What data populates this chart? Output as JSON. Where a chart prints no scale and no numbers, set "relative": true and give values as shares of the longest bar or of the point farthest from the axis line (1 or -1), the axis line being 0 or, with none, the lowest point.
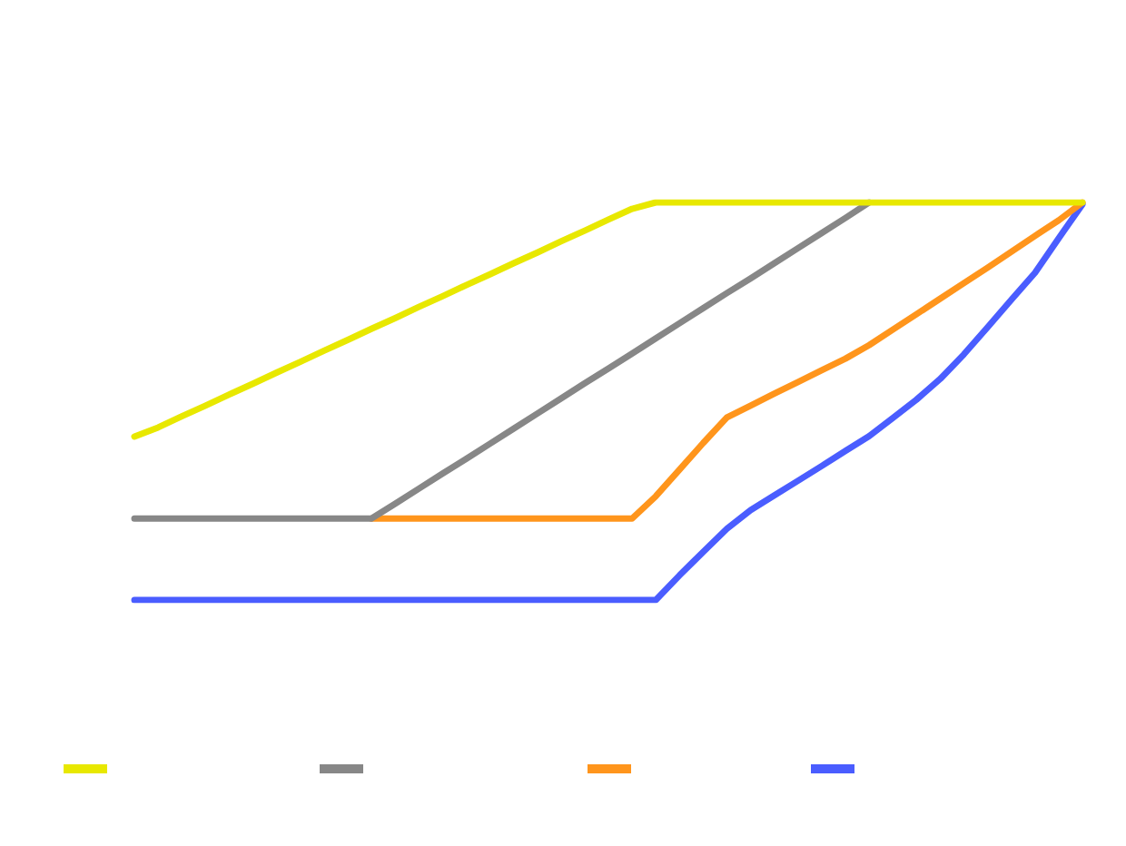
{
  "chart_data": {
    "type": "line",
    "relative": true,
    "categories": [
      null,
      null,
      null,
      null,
      null,
      null,
      null,
      null,
      null,
      null,
      null,
      null,
      null,
      null,
      null,
      null,
      null,
      null,
      null,
      null,
      null,
      null,
      null,
      null,
      null,
      null,
      null,
      null,
      null,
      null,
      null,
      null,
      null,
      null,
      null,
      null,
      null,
      null,
      null,
      null,
      null
    ],
    "series": [
      {
        "color": "#e8e800",
        "values": [
          0.411,
          0.434,
          0.462,
          0.489,
          0.517,
          0.544,
          0.572,
          0.599,
          0.627,
          0.654,
          0.682,
          0.709,
          0.737,
          0.764,
          0.792,
          0.819,
          0.847,
          0.874,
          0.902,
          0.929,
          0.957,
          0.984,
          1,
          1,
          1,
          1,
          1,
          1,
          1,
          1,
          1,
          1,
          1,
          1,
          1,
          1,
          1,
          1,
          1,
          1,
          1
        ]
      },
      {
        "color": "#878787",
        "values": [
          0.205,
          0.205,
          0.205,
          0.205,
          0.205,
          0.205,
          0.205,
          0.205,
          0.205,
          0.205,
          0.205,
          0.242,
          0.28,
          0.318,
          0.355,
          0.393,
          0.431,
          0.469,
          0.507,
          0.545,
          0.582,
          0.62,
          0.658,
          0.696,
          0.734,
          0.772,
          0.809,
          0.847,
          0.885,
          0.923,
          0.961,
          1,
          null,
          null,
          null,
          null,
          null,
          null,
          null,
          null,
          null
        ]
      },
      {
        "color": "#ff951c",
        "values": [
          null,
          null,
          null,
          null,
          null,
          null,
          null,
          null,
          null,
          null,
          0.205,
          0.205,
          0.205,
          0.205,
          0.205,
          0.205,
          0.205,
          0.205,
          0.205,
          0.205,
          0.205,
          0.205,
          0.261,
          0.328,
          0.395,
          0.459,
          0.489,
          0.519,
          0.548,
          0.578,
          0.607,
          0.641,
          0.68,
          0.719,
          0.758,
          0.797,
          0.836,
          0.876,
          0.916,
          0.955,
          1
        ]
      },
      {
        "color": "#4a5dff",
        "values": [
          0,
          0,
          0,
          0,
          0,
          0,
          0,
          0,
          0,
          0,
          0,
          0,
          0,
          0,
          0,
          0,
          0,
          0,
          0,
          0,
          0,
          0,
          0,
          0.062,
          0.121,
          0.179,
          0.226,
          0.263,
          0.3,
          0.337,
          0.375,
          0.412,
          0.458,
          0.504,
          0.556,
          0.618,
          0.686,
          0.755,
          0.823,
          0.91,
          0.995
        ]
      }
    ]
  }
}
